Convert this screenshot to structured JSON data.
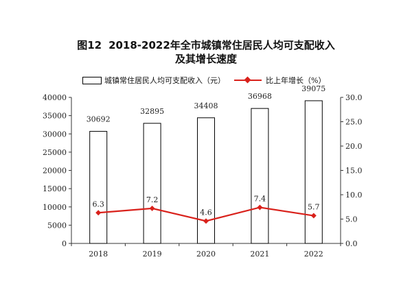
{
  "title": {
    "figure_no": "图12",
    "line1": "2018-2022年全市城镇常住居民人均可支配收入",
    "line2": "及其增长速度"
  },
  "colors": {
    "line": "#d9211b",
    "bar_fill": "#ffffff",
    "bar_stroke": "#000000",
    "axis": "#333333"
  },
  "chart_data": {
    "type": "bar+line",
    "categories": [
      "2018",
      "2019",
      "2020",
      "2021",
      "2022"
    ],
    "series": [
      {
        "name": "城镇常住居民人均可支配收入（元）",
        "type": "bar",
        "axis": "left",
        "values": [
          30692,
          32895,
          34408,
          36968,
          39075
        ]
      },
      {
        "name": "比上年增长（%）",
        "type": "line",
        "axis": "right",
        "values": [
          6.3,
          7.2,
          4.6,
          7.4,
          5.7
        ]
      }
    ],
    "y_left": {
      "min": 0,
      "max": 40000,
      "step": 5000,
      "ticks": [
        "0",
        "5000",
        "10000",
        "15000",
        "20000",
        "25000",
        "30000",
        "35000",
        "40000"
      ]
    },
    "y_right": {
      "min": 0,
      "max": 30,
      "step": 5,
      "ticks": [
        "0.0",
        "5.0",
        "10.0",
        "15.0",
        "20.0",
        "25.0",
        "30.0"
      ]
    },
    "bar_labels": [
      "30692",
      "32895",
      "34408",
      "36968",
      "39075"
    ],
    "line_labels": [
      "6.3",
      "7.2",
      "4.6",
      "7.4",
      "5.7"
    ],
    "legend_position": "top-center",
    "grid": false
  }
}
